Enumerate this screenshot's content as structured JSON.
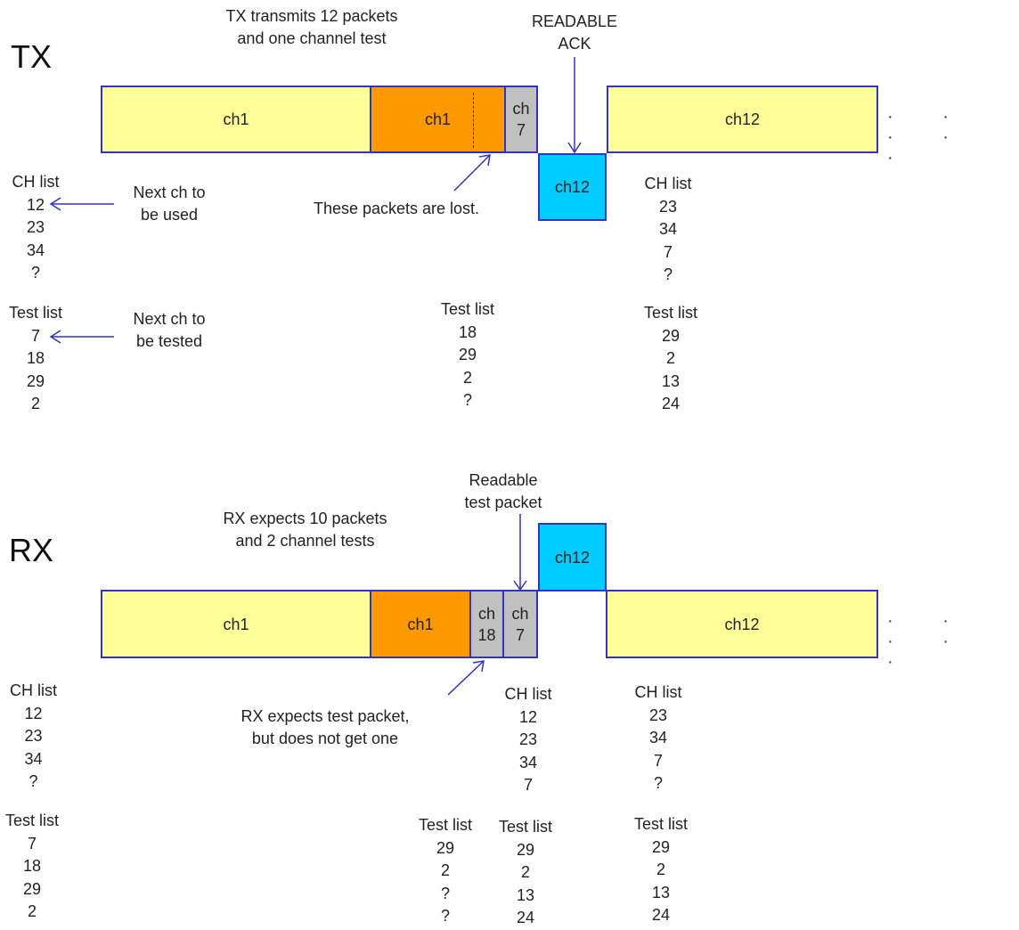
{
  "tx": {
    "title": "TX",
    "note": [
      "TX transmits 12 packets",
      "and one channel test"
    ],
    "readable_ack": [
      "READABLE",
      "ACK"
    ],
    "packets": [
      {
        "label": [
          "ch1"
        ],
        "color": "#ffff99"
      },
      {
        "label": [
          "ch1"
        ],
        "color": "#ff9900"
      },
      {
        "label": [
          "ch",
          "7"
        ],
        "color": "#c0c0c0"
      },
      {
        "label": [
          "ch12"
        ],
        "color": "#00ccff"
      },
      {
        "label": [
          "ch12"
        ],
        "color": "#ffff99"
      }
    ],
    "continuation": "· · · · ·",
    "lost_note": "These packets are lost.",
    "next_used": [
      "Next ch to",
      "be used"
    ],
    "next_tested": [
      "Next ch to",
      "be tested"
    ],
    "lists": [
      {
        "header": "CH list",
        "items": [
          "12",
          "23",
          "34",
          "?"
        ]
      },
      {
        "header": "Test list",
        "items": [
          "7",
          "18",
          "29",
          "2"
        ]
      },
      {
        "header": "Test list",
        "items": [
          "18",
          "29",
          "2",
          "?"
        ]
      },
      {
        "header": "CH list",
        "items": [
          "23",
          "34",
          "7",
          "?"
        ]
      },
      {
        "header": "Test list",
        "items": [
          "29",
          "2",
          "13",
          "24"
        ]
      }
    ]
  },
  "rx": {
    "title": "RX",
    "note": [
      "RX expects 10 packets",
      "and 2 channel tests"
    ],
    "readable_test": [
      "Readable",
      "test packet"
    ],
    "packets": [
      {
        "label": [
          "ch1"
        ],
        "color": "#ffff99"
      },
      {
        "label": [
          "ch1"
        ],
        "color": "#ff9900"
      },
      {
        "label": [
          "ch",
          "18"
        ],
        "color": "#c0c0c0"
      },
      {
        "label": [
          "ch",
          "7"
        ],
        "color": "#c0c0c0"
      },
      {
        "label": [
          "ch12"
        ],
        "color": "#00ccff"
      },
      {
        "label": [
          "ch12"
        ],
        "color": "#ffff99"
      }
    ],
    "continuation": "· · · · ·",
    "expects_note": [
      "RX expects test packet,",
      "but does not get one"
    ],
    "lists": [
      {
        "header": "CH list",
        "items": [
          "12",
          "23",
          "34",
          "?"
        ]
      },
      {
        "header": "Test list",
        "items": [
          "7",
          "18",
          "29",
          "2"
        ]
      },
      {
        "header": "CH list",
        "items": [
          "12",
          "23",
          "34",
          "7"
        ]
      },
      {
        "header": "CH list",
        "items": [
          "23",
          "34",
          "7",
          "?"
        ]
      },
      {
        "header": "Test list",
        "items": [
          "29",
          "2",
          "?",
          "?"
        ]
      },
      {
        "header": "Test list",
        "items": [
          "29",
          "2",
          "13",
          "24"
        ]
      },
      {
        "header": "Test list",
        "items": [
          "29",
          "2",
          "13",
          "24"
        ]
      }
    ]
  },
  "colors": {
    "arrow": "#3333bb",
    "border": "#3333bb"
  }
}
